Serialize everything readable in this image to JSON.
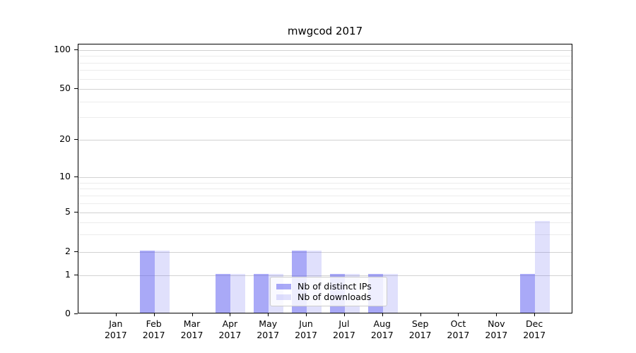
{
  "figure": {
    "title": "mwgcod 2017",
    "background": "#ffffff"
  },
  "chart_data": {
    "type": "bar",
    "title": "mwgcod 2017",
    "categories": [
      "Jan 2017",
      "Feb 2017",
      "Mar 2017",
      "Apr 2017",
      "May 2017",
      "Jun 2017",
      "Jul 2017",
      "Aug 2017",
      "Sep 2017",
      "Oct 2017",
      "Nov 2017",
      "Dec 2017"
    ],
    "series": [
      {
        "name": "Nb of distinct IPs",
        "color": "rgba(90,90,240,0.52)",
        "values": [
          0,
          2,
          0,
          1,
          1,
          2,
          1,
          1,
          0,
          0,
          0,
          1
        ]
      },
      {
        "name": "Nb of downloads",
        "color": "rgba(90,90,240,0.19)",
        "values": [
          0,
          2,
          0,
          1,
          1,
          2,
          1,
          1,
          0,
          0,
          0,
          4
        ]
      }
    ],
    "xlabel": "",
    "ylabel": "",
    "yscale": "symlog",
    "yticks": [
      0,
      1,
      2,
      5,
      10,
      20,
      50,
      100
    ],
    "minor_yticks": [
      3,
      4,
      6,
      7,
      8,
      9,
      30,
      40,
      60,
      70,
      80,
      90
    ],
    "ylim": [
      0,
      110
    ],
    "grid": "horizontal major + log minor",
    "legend_position": "lower center, inside axes"
  },
  "axes_style": {
    "spine_color": "#000000",
    "major_grid_color": "#d2d2d2",
    "minor_grid_color": "#ececec",
    "legend_border_color": "#cccccc"
  }
}
